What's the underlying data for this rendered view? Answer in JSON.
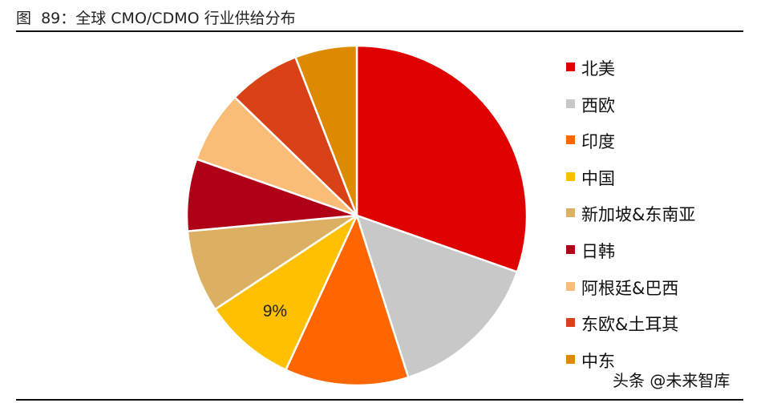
{
  "header": {
    "title": "图  89：全球 CMO/CDMO 行业供给分布"
  },
  "watermark": "头条 @未来智库",
  "chart_data": {
    "type": "pie",
    "title": "图  89：全球 CMO/CDMO 行业供给分布",
    "legend_position": "right",
    "start": "12 o'clock, clockwise",
    "series": [
      {
        "name": "北美",
        "value": 31,
        "color": "#DF0000"
      },
      {
        "name": "西欧",
        "value": 15,
        "color": "#C8C8C8"
      },
      {
        "name": "印度",
        "value": 12,
        "color": "#FF6600"
      },
      {
        "name": "中国",
        "value": 9,
        "color": "#FFC000",
        "data_label": "9%"
      },
      {
        "name": "新加坡&东南亚",
        "value": 8,
        "color": "#DCB062"
      },
      {
        "name": "日韩",
        "value": 7,
        "color": "#B00018"
      },
      {
        "name": "阿根廷&巴西",
        "value": 7,
        "color": "#F9BD78"
      },
      {
        "name": "东欧&土耳其",
        "value": 7,
        "color": "#D84216"
      },
      {
        "name": "中东",
        "value": 6,
        "color": "#DE8A00"
      }
    ]
  }
}
